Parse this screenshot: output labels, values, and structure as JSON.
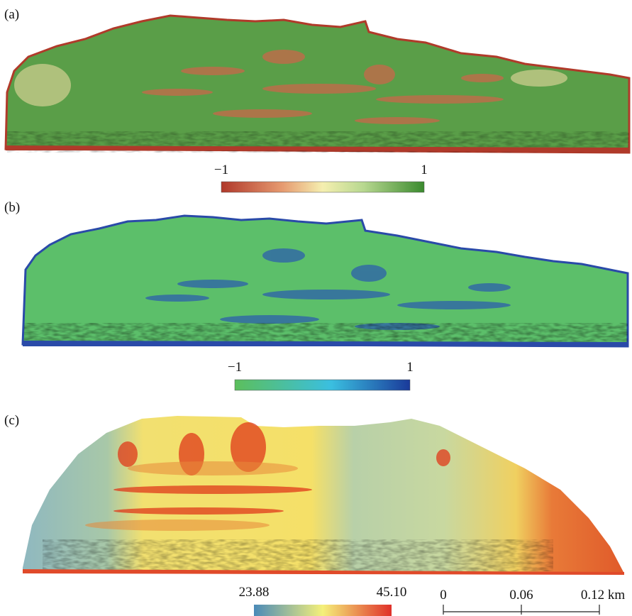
{
  "panels": [
    {
      "label": "(a)",
      "colorbar": {
        "min": "−1",
        "max": "1"
      }
    },
    {
      "label": "(b)",
      "colorbar": {
        "min": "−1",
        "max": "1"
      }
    },
    {
      "label": "(c)",
      "colorbar": {
        "min": "23.88",
        "max": "45.10"
      }
    }
  ],
  "scale_bar": {
    "labels": [
      "0",
      "0.06",
      "0.12 km"
    ]
  }
}
